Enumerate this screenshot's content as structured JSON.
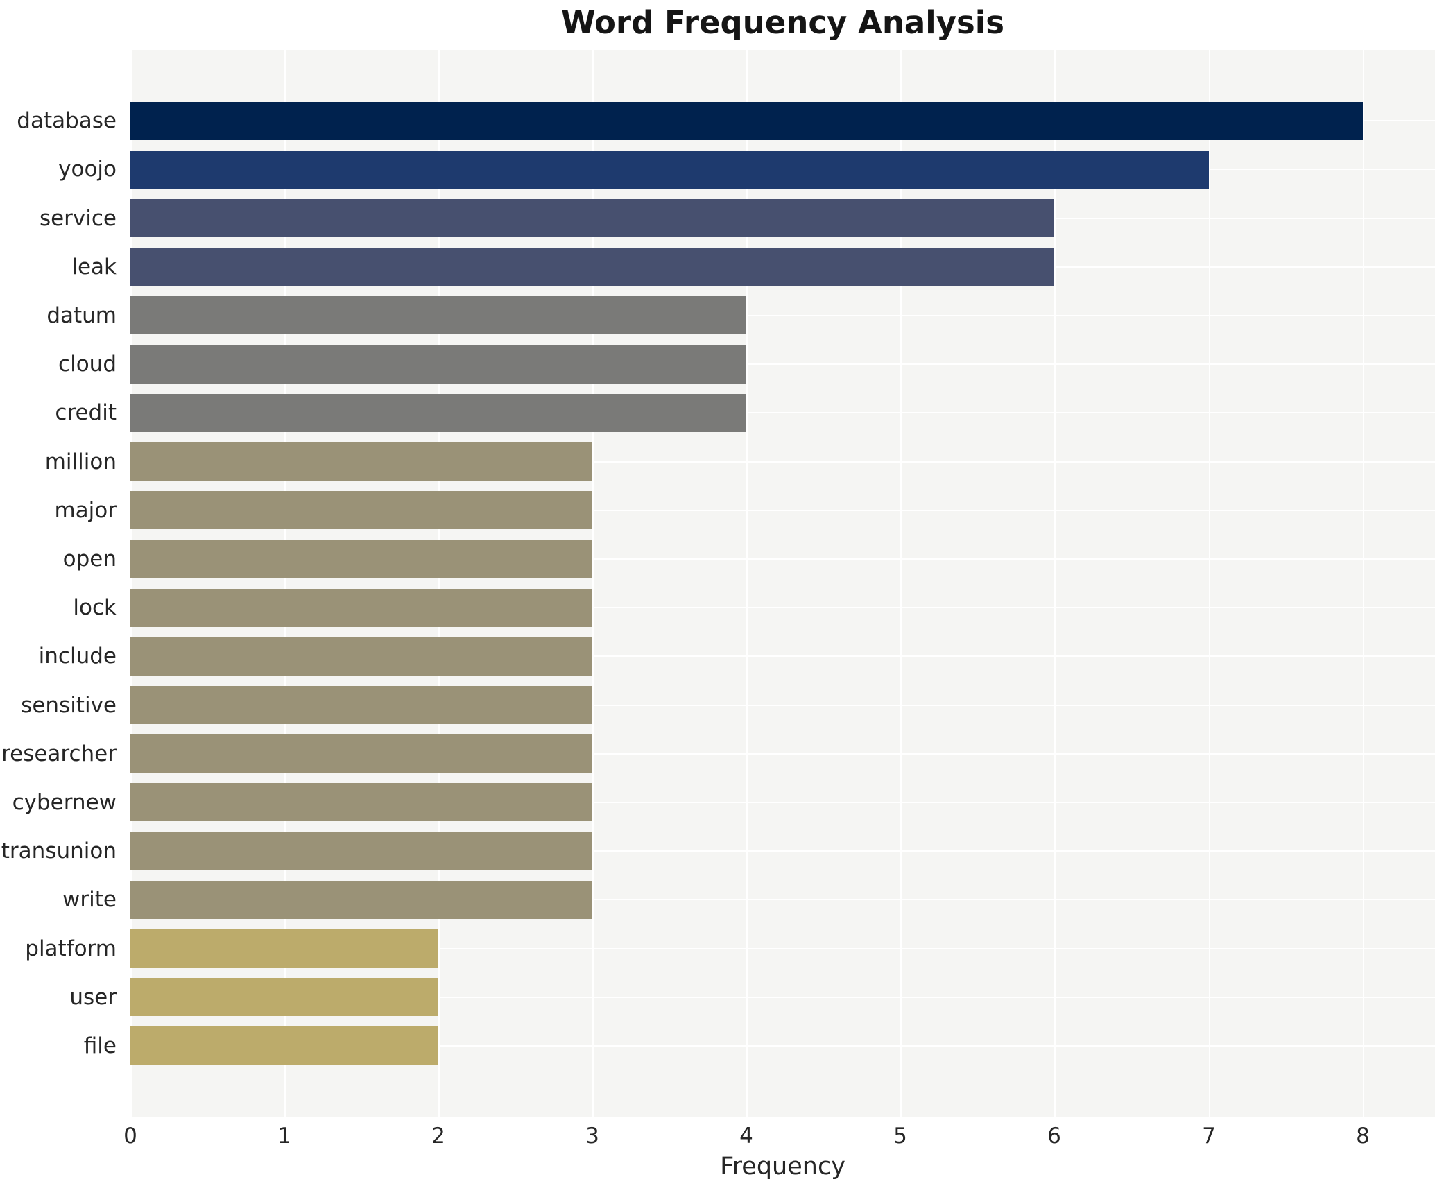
{
  "title": "Word Frequency Analysis",
  "chart_data": {
    "type": "bar",
    "orientation": "horizontal",
    "title": "Word Frequency Analysis",
    "xlabel": "Frequency",
    "ylabel": "",
    "categories": [
      "database",
      "yoojo",
      "service",
      "leak",
      "datum",
      "cloud",
      "credit",
      "million",
      "major",
      "open",
      "lock",
      "include",
      "sensitive",
      "researcher",
      "cybernew",
      "transunion",
      "write",
      "platform",
      "user",
      "file"
    ],
    "values": [
      8,
      7,
      6,
      6,
      4,
      4,
      4,
      3,
      3,
      3,
      3,
      3,
      3,
      3,
      3,
      3,
      3,
      2,
      2,
      2
    ],
    "bar_colors": [
      "#00224e",
      "#1e3a6e",
      "#47506f",
      "#47506f",
      "#7a7a78",
      "#7a7a78",
      "#7a7a78",
      "#9a9277",
      "#9a9277",
      "#9a9277",
      "#9a9277",
      "#9a9277",
      "#9a9277",
      "#9a9277",
      "#9a9277",
      "#9a9277",
      "#9a9277",
      "#bcab6b",
      "#bcab6b",
      "#bcab6b"
    ],
    "xticks": [
      0,
      1,
      2,
      3,
      4,
      5,
      6,
      7,
      8
    ],
    "xlim": [
      0,
      8.47
    ],
    "grid": true,
    "legend": false,
    "plot_background": "#f5f5f3",
    "gridline_color": "#ffffff",
    "text_color": "#262626"
  }
}
